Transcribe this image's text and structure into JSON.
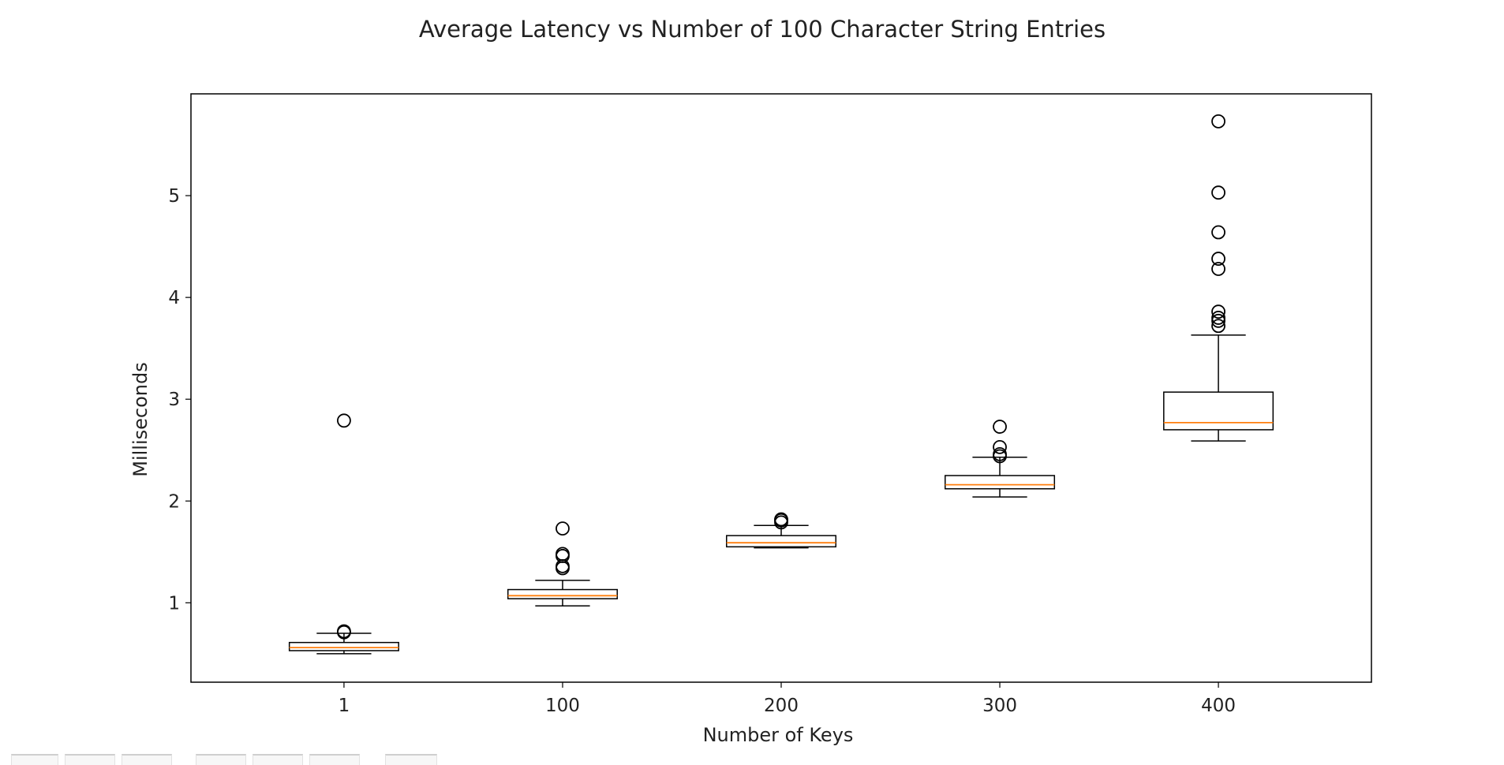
{
  "chart_data": {
    "type": "boxplot",
    "title": "Average Latency vs Number of 100 Character String Entries",
    "xlabel": "Number of Keys",
    "ylabel": "Milliseconds",
    "categories": [
      "1",
      "100",
      "200",
      "300",
      "400"
    ],
    "ylim": [
      0.22,
      6.0
    ],
    "yticks": [
      1,
      2,
      3,
      4,
      5
    ],
    "grid": false,
    "colors": {
      "box": "#000000",
      "median": "#ff7f0e",
      "whisker": "#000000",
      "flier": "#000000"
    },
    "boxes": [
      {
        "category": "1",
        "whislo": 0.5,
        "q1": 0.53,
        "med": 0.56,
        "q3": 0.61,
        "whishi": 0.7,
        "fliers": [
          0.71,
          0.72,
          2.79
        ]
      },
      {
        "category": "100",
        "whislo": 0.97,
        "q1": 1.04,
        "med": 1.07,
        "q3": 1.13,
        "whishi": 1.22,
        "fliers": [
          1.34,
          1.36,
          1.46,
          1.48,
          1.73
        ]
      },
      {
        "category": "200",
        "whislo": 1.54,
        "q1": 1.55,
        "med": 1.59,
        "q3": 1.66,
        "whishi": 1.76,
        "fliers": [
          1.79,
          1.81,
          1.82
        ]
      },
      {
        "category": "300",
        "whislo": 2.04,
        "q1": 2.12,
        "med": 2.16,
        "q3": 2.25,
        "whishi": 2.43,
        "fliers": [
          2.44,
          2.46,
          2.53,
          2.73
        ]
      },
      {
        "category": "400",
        "whislo": 2.59,
        "q1": 2.7,
        "med": 2.77,
        "q3": 3.07,
        "whishi": 3.63,
        "fliers": [
          3.72,
          3.77,
          3.8,
          3.86,
          4.28,
          4.38,
          4.64,
          5.03,
          5.73
        ]
      }
    ]
  },
  "toolbar": {
    "buttons": [
      "home",
      "back",
      "forward",
      "pan",
      "zoom",
      "subplots",
      "save"
    ]
  }
}
